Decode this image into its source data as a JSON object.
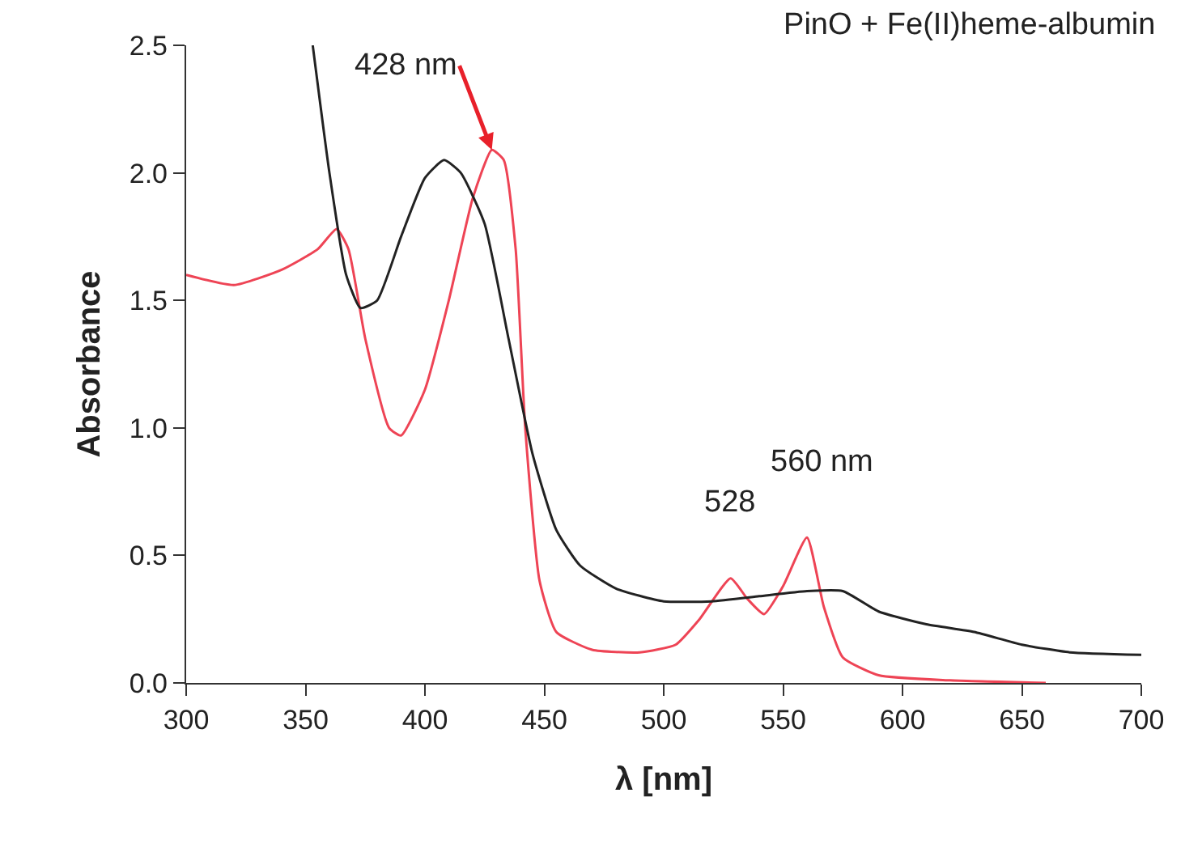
{
  "chart_data": {
    "type": "line",
    "title": "PinO + Fe(II)heme-albumin",
    "xlabel": "λ [nm]",
    "ylabel": "Absorbance",
    "xlim": [
      300,
      700
    ],
    "xticks": [
      300,
      350,
      400,
      450,
      500,
      550,
      600,
      650,
      700
    ],
    "ylim": [
      0,
      2.5
    ],
    "yticks": [
      {
        "value": 0,
        "label": "0.0"
      },
      {
        "value": 0.5,
        "label": "0.5"
      },
      {
        "value": 1,
        "label": "1.0"
      },
      {
        "value": 1.5,
        "label": "1.5"
      },
      {
        "value": 2,
        "label": "2.0"
      },
      {
        "value": 2.5,
        "label": "2.5"
      }
    ],
    "marker": "none",
    "line_style": "solid",
    "annotations": [
      {
        "text": "428 nm",
        "x": 428,
        "y": 2.09
      },
      {
        "text": "528",
        "x": 528,
        "y": 0.41
      },
      {
        "text": "560 nm",
        "x": 560,
        "y": 0.57
      }
    ],
    "series": [
      {
        "color": "#ee4455",
        "x": [
          300,
          320,
          340,
          355,
          363,
          368,
          375,
          385,
          390,
          400,
          410,
          420,
          428,
          433,
          438,
          442,
          448,
          455,
          470,
          490,
          505,
          515,
          528,
          535,
          542,
          550,
          560,
          567,
          575,
          590,
          620,
          660
        ],
        "values": [
          1.6,
          1.56,
          1.62,
          1.7,
          1.78,
          1.7,
          1.35,
          1.0,
          0.97,
          1.15,
          1.5,
          1.9,
          2.09,
          2.05,
          1.7,
          1.0,
          0.4,
          0.2,
          0.13,
          0.12,
          0.15,
          0.25,
          0.41,
          0.33,
          0.27,
          0.38,
          0.57,
          0.3,
          0.1,
          0.03,
          0.01,
          0.0
        ]
      },
      {
        "color": "#222222",
        "x": [
          353,
          360,
          367,
          373,
          380,
          390,
          400,
          408,
          415,
          425,
          435,
          445,
          455,
          465,
          480,
          500,
          520,
          540,
          560,
          575,
          590,
          610,
          630,
          650,
          670,
          700
        ],
        "values": [
          2.5,
          2.0,
          1.6,
          1.47,
          1.5,
          1.75,
          1.98,
          2.05,
          2.0,
          1.8,
          1.35,
          0.9,
          0.6,
          0.46,
          0.37,
          0.32,
          0.32,
          0.34,
          0.36,
          0.36,
          0.28,
          0.23,
          0.2,
          0.15,
          0.12,
          0.11
        ]
      }
    ]
  }
}
